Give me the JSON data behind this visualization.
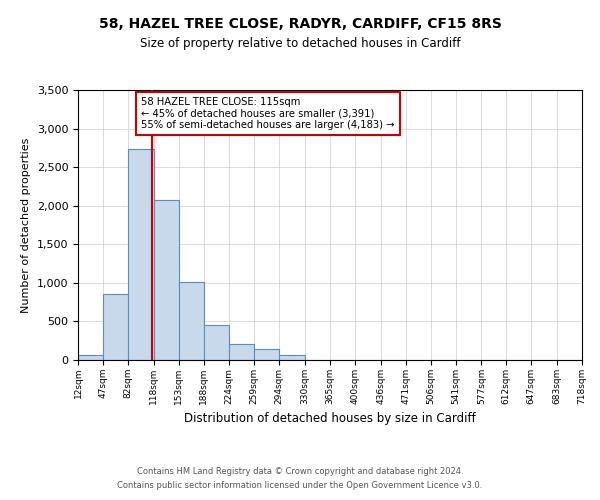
{
  "title": "58, HAZEL TREE CLOSE, RADYR, CARDIFF, CF15 8RS",
  "subtitle": "Size of property relative to detached houses in Cardiff",
  "xlabel": "Distribution of detached houses by size in Cardiff",
  "ylabel": "Number of detached properties",
  "bin_edges": [
    12,
    47,
    82,
    118,
    153,
    188,
    224,
    259,
    294,
    330,
    365,
    400,
    436,
    471,
    506,
    541,
    577,
    612,
    647,
    683,
    718
  ],
  "bin_labels": [
    "12sqm",
    "47sqm",
    "82sqm",
    "118sqm",
    "153sqm",
    "188sqm",
    "224sqm",
    "259sqm",
    "294sqm",
    "330sqm",
    "365sqm",
    "400sqm",
    "436sqm",
    "471sqm",
    "506sqm",
    "541sqm",
    "577sqm",
    "612sqm",
    "647sqm",
    "683sqm",
    "718sqm"
  ],
  "counts": [
    60,
    850,
    2730,
    2080,
    1010,
    460,
    210,
    145,
    60,
    0,
    0,
    0,
    0,
    0,
    0,
    0,
    0,
    0,
    0,
    0
  ],
  "bar_facecolor": "#c9d9ec",
  "bar_edgecolor": "#5b8db8",
  "vline_x": 115,
  "vline_color": "#cc0000",
  "ylim": [
    0,
    3500
  ],
  "yticks": [
    0,
    500,
    1000,
    1500,
    2000,
    2500,
    3000,
    3500
  ],
  "annotation_line1": "58 HAZEL TREE CLOSE: 115sqm",
  "annotation_line2": "← 45% of detached houses are smaller (3,391)",
  "annotation_line3": "55% of semi-detached houses are larger (4,183) →",
  "footer1": "Contains HM Land Registry data © Crown copyright and database right 2024.",
  "footer2": "Contains public sector information licensed under the Open Government Licence v3.0.",
  "background_color": "#ffffff",
  "grid_color": "#cccccc"
}
